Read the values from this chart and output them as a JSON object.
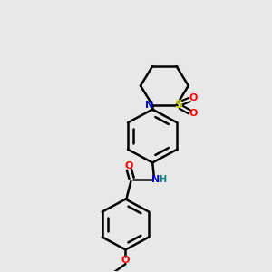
{
  "bg_color": "#e8e8e8",
  "line_color": "#000000",
  "bond_width": 1.8,
  "figsize": [
    3.0,
    3.0
  ],
  "dpi": 100,
  "colors": {
    "N": "#0000cc",
    "O": "#ff0000",
    "S": "#cccc00",
    "H": "#008080"
  }
}
